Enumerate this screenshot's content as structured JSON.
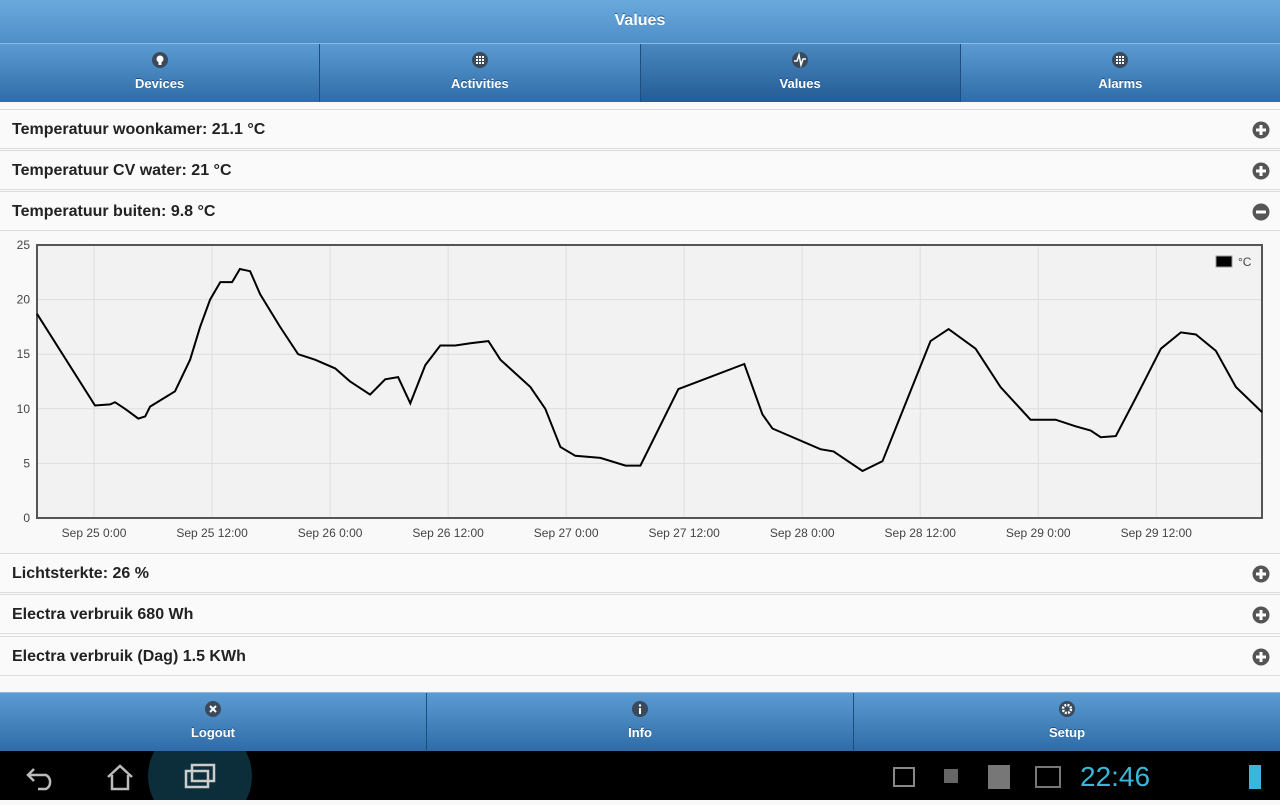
{
  "header": {
    "title": "Values"
  },
  "tabs": [
    "Devices",
    "Activities",
    "Values",
    "Alarms"
  ],
  "items_top": [
    "Temperatuur woonkamer: 21.1 °C",
    "Temperatuur CV water: 21 °C",
    "Temperatuur buiten: 9.8 °C"
  ],
  "items_bottom": [
    "Lichtsterkte: 26 %",
    "Electra verbruik 680 Wh",
    "Electra verbruik (Dag) 1.5 KWh"
  ],
  "footer": [
    "Logout",
    "Info",
    "Setup"
  ],
  "status_bar": {
    "time": "22:46"
  },
  "chart_data": {
    "type": "line",
    "x": [
      "Sep 24 18:12",
      "Sep 25 0:06",
      "Sep 25 1:38",
      "Sep 25 2:08",
      "Sep 25 3:09",
      "Sep 25 4:30",
      "Sep 25 5:12",
      "Sep 25 5:42",
      "Sep 25 8:14",
      "Sep 25 9:46",
      "Sep 25 10:47",
      "Sep 25 11:48",
      "Sep 25 12:50",
      "Sep 25 14:02",
      "Sep 25 14:50",
      "Sep 25 15:52",
      "Sep 25 16:53",
      "Sep 25 18:55",
      "Sep 25 20:45",
      "Sep 25 22:28",
      "Sep 26 0:31",
      "Sep 26 2:02",
      "Sep 26 4:04",
      "Sep 26 5:36",
      "Sep 26 6:55",
      "Sep 26 8:09",
      "Sep 26 9:41",
      "Sep 26 11:12",
      "Sep 26 12:44",
      "Sep 26 14:16",
      "Sep 26 16:06",
      "Sep 26 17:19",
      "Sep 26 20:22",
      "Sep 26 21:53",
      "Sep 26 23:25",
      "Sep 27 0:56",
      "Sep 27 3:29",
      "Sep 27 6:02",
      "Sep 27 7:33",
      "Sep 27 11:25",
      "Sep 27 18:07",
      "Sep 27 19:57",
      "Sep 27 20:58",
      "Sep 28 1:51",
      "Sep 28 3:11",
      "Sep 28 6:08",
      "Sep 28 8:10",
      "Sep 28 13:03",
      "Sep 28 14:53",
      "Sep 28 17:38",
      "Sep 28 20:10",
      "Sep 28 21:11",
      "Sep 28 23:13",
      "Sep 29 1:46",
      "Sep 29 3:48",
      "Sep 29 5:20",
      "Sep 29 6:21",
      "Sep 29 7:53",
      "Sep 29 9:55",
      "Sep 29 12:28",
      "Sep 29 14:30",
      "Sep 29 16:02",
      "Sep 29 18:04",
      "Sep 29 20:06",
      "Sep 29 22:45"
    ],
    "series": [
      {
        "name": "°C",
        "color": "#000000",
        "values": [
          18.7,
          10.3,
          10.4,
          10.6,
          10.0,
          9.1,
          9.3,
          10.2,
          11.6,
          14.5,
          17.5,
          20.0,
          21.6,
          21.6,
          22.8,
          22.6,
          20.5,
          17.5,
          15.0,
          14.5,
          13.7,
          12.5,
          11.3,
          12.7,
          12.9,
          10.5,
          14.0,
          15.8,
          15.8,
          16.0,
          16.2,
          14.5,
          12.0,
          10.0,
          6.5,
          5.7,
          5.5,
          4.8,
          4.8,
          11.8,
          14.1,
          9.5,
          8.2,
          6.3,
          6.1,
          4.3,
          5.2,
          16.2,
          17.3,
          15.5,
          12.0,
          11.0,
          9.0,
          9.0,
          8.4,
          8.0,
          7.4,
          7.5,
          11.0,
          15.5,
          17.0,
          16.8,
          15.3,
          12.0,
          9.7
        ]
      }
    ],
    "xlim": [
      "Sep 24 18:12",
      "Sep 29 22:45"
    ],
    "xticks": [
      "Sep 25 0:00",
      "Sep 25 12:00",
      "Sep 26 0:00",
      "Sep 26 12:00",
      "Sep 27 0:00",
      "Sep 27 12:00",
      "Sep 28 0:00",
      "Sep 28 12:00",
      "Sep 29 0:00",
      "Sep 29 12:00"
    ],
    "ylim": [
      0,
      25
    ],
    "yticks": [
      0,
      5,
      10,
      15,
      20,
      25
    ],
    "grid": true,
    "legend": "top-right"
  }
}
